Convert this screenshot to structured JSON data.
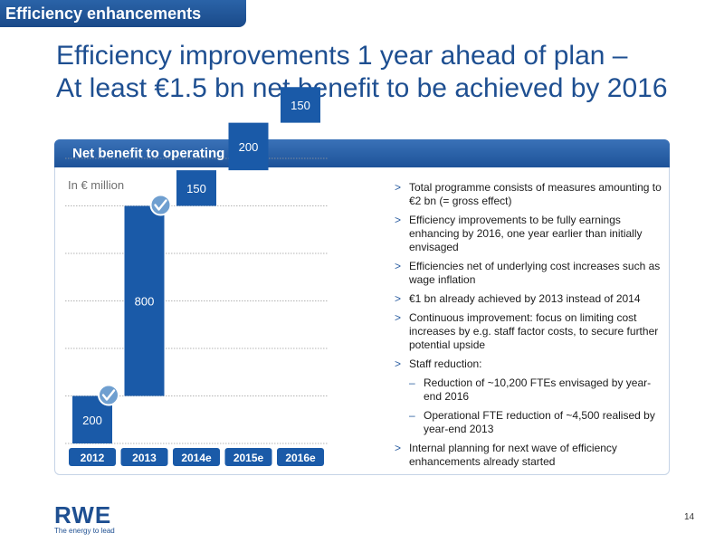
{
  "section_tab": "Efficiency enhancements",
  "title": {
    "line1": "Efficiency improvements 1 year ahead of plan –",
    "line2": "At least €1.5 bn net benefit to be achieved by 2016"
  },
  "panel": {
    "header": "Net benefit to operating result",
    "unit": "In € million"
  },
  "chart_data": {
    "type": "bar",
    "subtype": "waterfall",
    "categories": [
      "2012",
      "2013",
      "2014e",
      "2015e",
      "2016e"
    ],
    "values": [
      200,
      800,
      150,
      200,
      150
    ],
    "data_labels": [
      "200",
      "800",
      "150",
      "200",
      "150"
    ],
    "achieved_checkmarks": [
      true,
      true,
      false,
      false,
      false
    ],
    "ylim": [
      0,
      1500
    ],
    "grid": true,
    "bar_color": "#1a5aa8",
    "label_color_inside": "#ffffff",
    "label_color_outside": "#1c1c1c"
  },
  "bullets": [
    {
      "text": "Total programme consists of measures amounting to €2 bn (= gross effect)",
      "level": 1
    },
    {
      "text": "Efficiency improvements to be fully earnings enhancing by 2016, one year earlier than initially envisaged",
      "level": 1
    },
    {
      "text": "Efficiencies net of underlying cost increases such as wage inflation",
      "level": 1
    },
    {
      "text": "€1 bn already achieved by 2013 instead of 2014",
      "level": 1
    },
    {
      "text": "Continuous improvement: focus on limiting cost increases by e.g. staff factor costs, to secure further potential upside",
      "level": 1
    },
    {
      "text": "Staff reduction:",
      "level": 1
    },
    {
      "text": "Reduction of ~10,200 FTEs envisaged by year-end 2016",
      "level": 2
    },
    {
      "text": "Operational FTE reduction of ~4,500 realised by year-end 2013",
      "level": 2
    },
    {
      "text": "Internal planning for next wave of efficiency enhancements already started",
      "level": 1
    }
  ],
  "logo": {
    "word": "RWE",
    "tagline": "The energy to lead"
  },
  "page_number": "14",
  "colors": {
    "brand_blue": "#1e4f91",
    "bar_blue": "#1a5aa8"
  }
}
